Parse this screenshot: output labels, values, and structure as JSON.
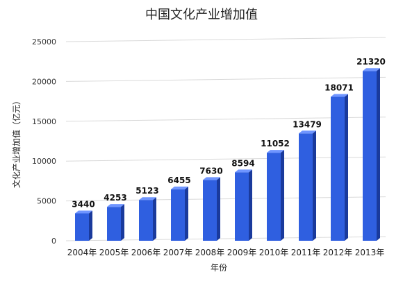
{
  "chart_data": {
    "type": "bar",
    "title": "中国文化产业增加值",
    "xlabel": "年份",
    "ylabel": "文化产业增加值（亿元）",
    "categories": [
      "2004年",
      "2005年",
      "2006年",
      "2007年",
      "2008年",
      "2009年",
      "2010年",
      "2011年",
      "2012年",
      "2013年"
    ],
    "values": [
      3440,
      4253,
      5123,
      6455,
      7630,
      8594,
      11052,
      13479,
      18071,
      21320
    ],
    "ylim": [
      0,
      25000
    ],
    "yticks": [
      "0",
      "5000",
      "10000",
      "15000",
      "20000",
      "25000"
    ],
    "grid": true,
    "legend": "none",
    "colors": {
      "bar_front": "#2f5fe0",
      "bar_side": "#1a3a9c",
      "bar_top": "#6f95ff",
      "grid": "#d9d9d9"
    }
  }
}
